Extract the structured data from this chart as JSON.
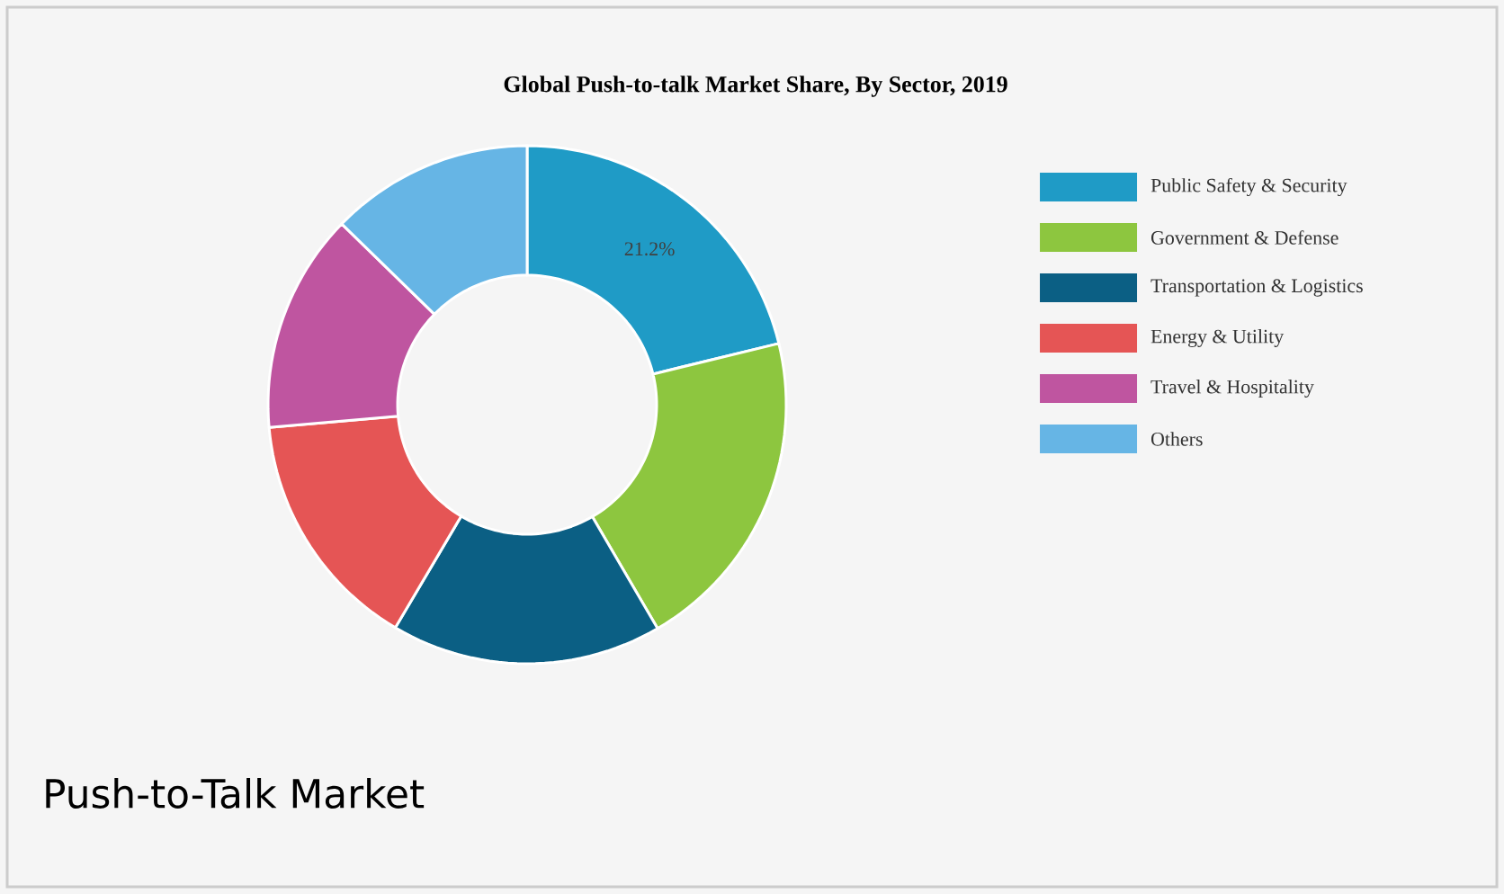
{
  "chart_data": {
    "type": "donut",
    "title": "Global Push-to-talk Market Share, By Sector, 2019",
    "categories": [
      "Public Safety & Security",
      "Government & Defense",
      "Transportation & Logistics",
      "Energy & Utility",
      "Travel & Hospitality",
      "Others"
    ],
    "values": [
      21.2,
      20.4,
      16.9,
      15.1,
      13.7,
      12.7
    ],
    "colors": [
      "#1f9bc6",
      "#8dc63f",
      "#0b5f84",
      "#e55555",
      "#bf55a0",
      "#66b5e5"
    ],
    "value_labels": [
      "21.2%",
      null,
      null,
      null,
      null,
      null
    ],
    "legend": "right",
    "annotations": [
      "Push-to-Talk Market"
    ]
  }
}
